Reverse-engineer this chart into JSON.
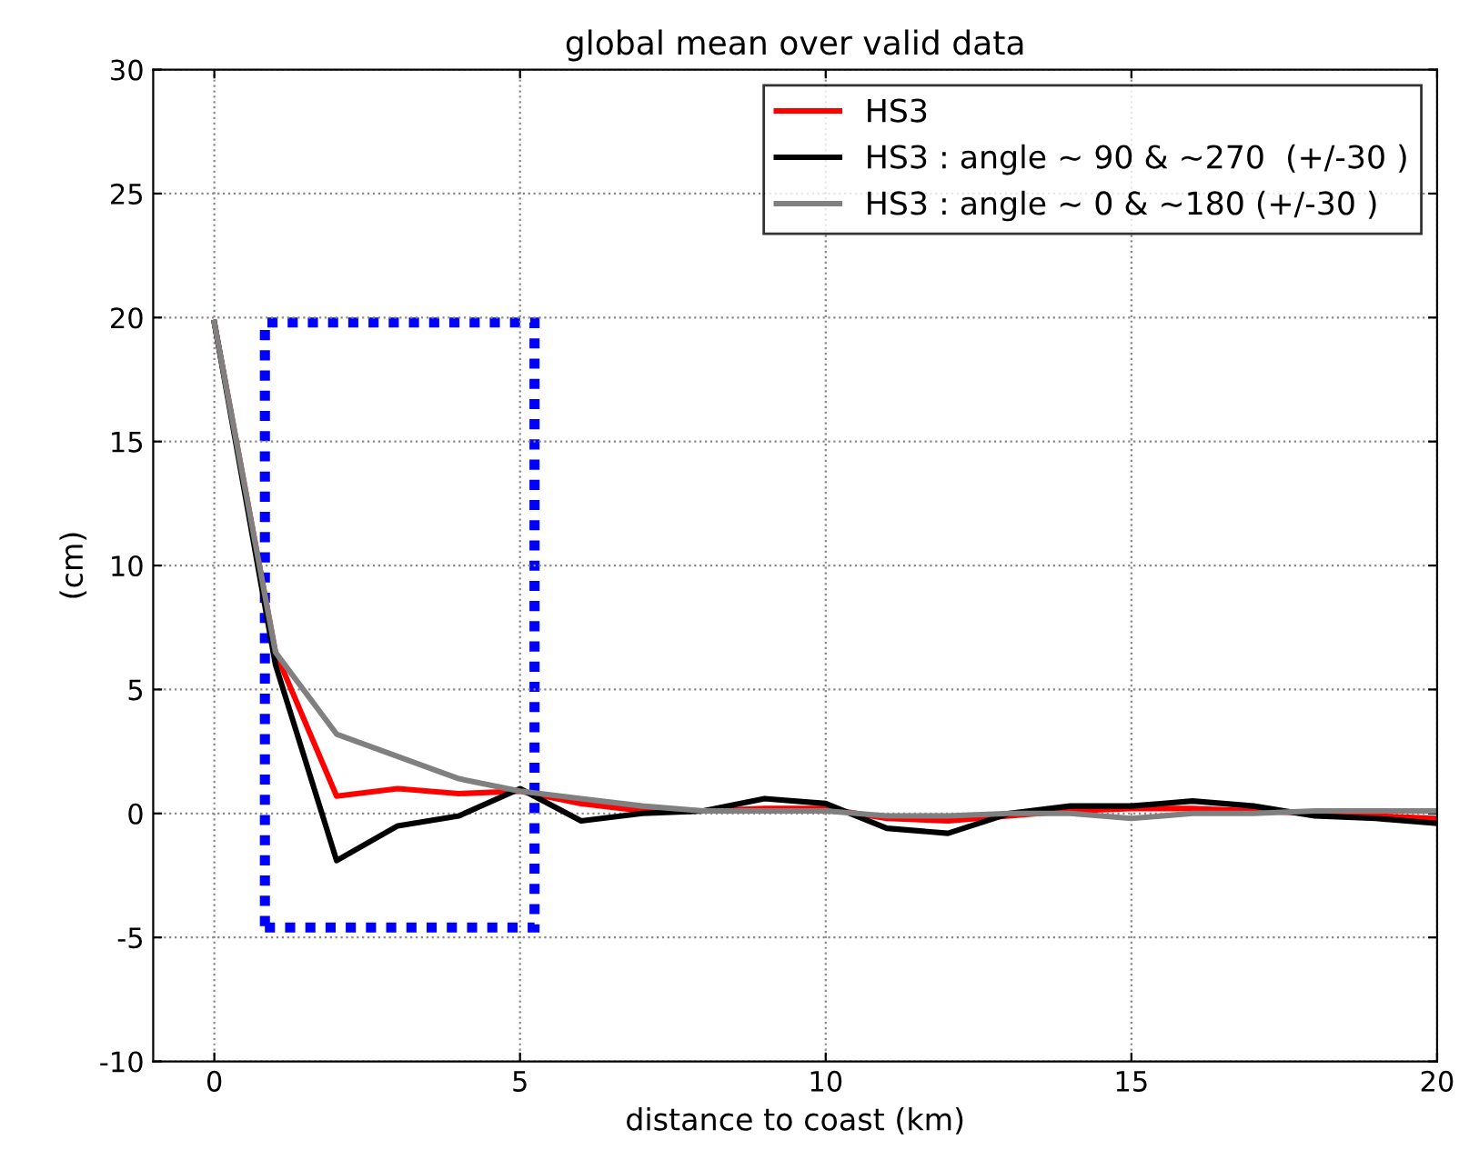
{
  "chart_data": {
    "type": "line",
    "title": "global mean over valid data",
    "xlabel": "distance to coast (km)",
    "ylabel": "(cm)",
    "x": [
      0,
      1,
      2,
      3,
      4,
      5,
      6,
      7,
      8,
      9,
      10,
      11,
      12,
      13,
      14,
      15,
      16,
      17,
      18,
      19,
      20
    ],
    "series": [
      {
        "name": "HS3",
        "color": "#ff0000",
        "values": [
          19.8,
          6.5,
          0.7,
          1.0,
          0.8,
          0.9,
          0.4,
          0.1,
          0.1,
          0.2,
          0.2,
          -0.2,
          -0.3,
          -0.1,
          0.1,
          0.2,
          0.2,
          0.1,
          0.0,
          -0.1,
          -0.2
        ]
      },
      {
        "name": "HS3 : angle ~ 90 & ~270  (+/-30 )",
        "color": "#000000",
        "values": [
          19.8,
          6.0,
          -1.9,
          -0.5,
          -0.1,
          1.0,
          -0.3,
          0.0,
          0.1,
          0.6,
          0.4,
          -0.6,
          -0.8,
          0.0,
          0.3,
          0.3,
          0.5,
          0.3,
          -0.1,
          -0.2,
          -0.4
        ]
      },
      {
        "name": "HS3 : angle ~ 0 & ~180 (+/-30 )",
        "color": "#808080",
        "values": [
          19.8,
          6.5,
          3.2,
          2.3,
          1.4,
          0.9,
          0.6,
          0.3,
          0.1,
          0.1,
          0.1,
          -0.1,
          -0.1,
          0.0,
          0.0,
          -0.2,
          0.0,
          0.0,
          0.1,
          0.1,
          0.1
        ]
      }
    ],
    "xlim": [
      -1,
      20
    ],
    "xticks": [
      0,
      5,
      10,
      15,
      20
    ],
    "ylim": [
      -10,
      30
    ],
    "yticks": [
      -10,
      -5,
      0,
      5,
      10,
      15,
      20,
      25,
      30
    ],
    "grid": true,
    "legend": "top right",
    "line_style": "solid",
    "marker": "none"
  }
}
